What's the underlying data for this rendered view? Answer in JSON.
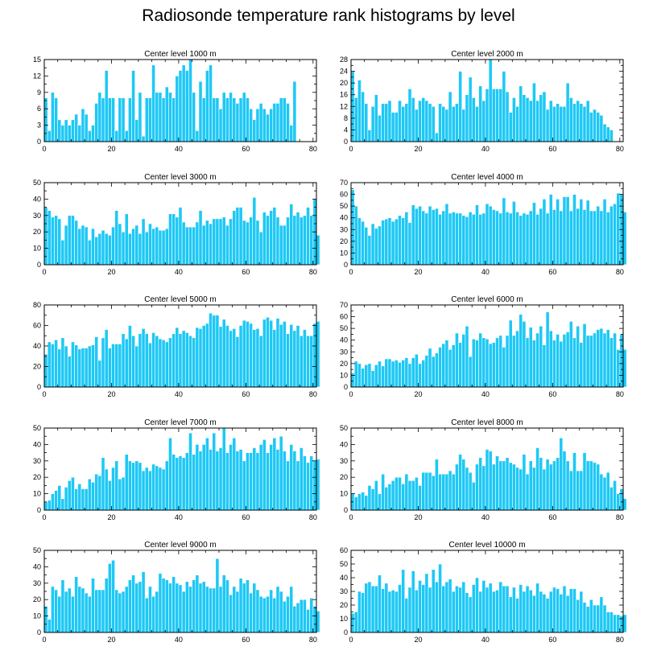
{
  "title": "Radiosonde temperature rank histograms by level",
  "colors": {
    "bar": "#1ec8f5",
    "bar_edge": "#ffffff",
    "axis": "#000000"
  },
  "chart_data": [
    {
      "type": "bar",
      "title": "Center level 1000 m",
      "xlim": [
        0,
        81
      ],
      "ylim": [
        0,
        15
      ],
      "xticks": [
        0,
        20,
        40,
        60,
        80
      ],
      "yticks": [
        0,
        3,
        6,
        9,
        12,
        15
      ],
      "values": [
        8,
        2,
        9,
        8,
        4,
        3,
        4,
        3,
        4,
        5,
        3,
        6,
        5,
        2,
        3,
        7,
        9,
        8,
        13,
        8,
        8,
        2,
        8,
        8,
        2,
        8,
        13,
        4,
        9,
        1,
        8,
        8,
        14,
        9,
        9,
        8,
        10,
        9,
        8,
        12,
        13,
        14,
        13,
        15,
        9,
        2,
        11,
        8,
        13,
        14,
        8,
        8,
        6,
        9,
        8,
        9,
        8,
        7,
        8,
        9,
        8,
        6,
        4,
        6,
        7,
        6,
        5,
        6,
        7,
        7,
        8,
        8,
        7,
        3,
        11
      ]
    },
    {
      "type": "bar",
      "title": "Center level 2000 m",
      "xlim": [
        0,
        81
      ],
      "ylim": [
        0,
        28
      ],
      "xticks": [
        0,
        20,
        40,
        60,
        80
      ],
      "yticks": [
        0,
        4,
        8,
        12,
        16,
        20,
        24,
        28
      ],
      "values": [
        24,
        15,
        21,
        17,
        13,
        4,
        12,
        16,
        9,
        13,
        13,
        14,
        10,
        10,
        14,
        12,
        13,
        18,
        15,
        11,
        14,
        15,
        14,
        13,
        12,
        3,
        13,
        12,
        11,
        17,
        12,
        13,
        24,
        11,
        16,
        22,
        15,
        12,
        19,
        14,
        18,
        28,
        18,
        18,
        18,
        24,
        17,
        10,
        15,
        12,
        19,
        16,
        15,
        14,
        20,
        14,
        16,
        17,
        11,
        14,
        12,
        13,
        12,
        12,
        20,
        15,
        13,
        14,
        13,
        12,
        14,
        10,
        11,
        10,
        9,
        6,
        5,
        4
      ]
    },
    {
      "type": "bar",
      "title": "Center level 3000 m",
      "xlim": [
        0,
        81
      ],
      "ylim": [
        0,
        50
      ],
      "xticks": [
        0,
        20,
        40,
        60,
        80
      ],
      "yticks": [
        0,
        10,
        20,
        30,
        40,
        50
      ],
      "values": [
        35,
        33,
        29,
        30,
        28,
        15,
        24,
        30,
        30,
        27,
        22,
        24,
        23,
        15,
        22,
        17,
        19,
        21,
        19,
        18,
        23,
        33,
        25,
        20,
        31,
        19,
        22,
        24,
        19,
        28,
        20,
        25,
        22,
        23,
        21,
        21,
        22,
        31,
        31,
        29,
        35,
        26,
        23,
        23,
        23,
        26,
        33,
        24,
        27,
        25,
        28,
        28,
        28,
        29,
        24,
        28,
        33,
        35,
        35,
        27,
        26,
        29,
        41,
        27,
        20,
        32,
        30,
        33,
        35,
        29,
        24,
        24,
        29,
        37,
        30,
        32,
        29,
        30,
        35,
        30,
        40,
        18
      ]
    },
    {
      "type": "bar",
      "title": "Center level 4000 m",
      "xlim": [
        0,
        81
      ],
      "ylim": [
        0,
        70
      ],
      "xticks": [
        0,
        20,
        40,
        60,
        80
      ],
      "yticks": [
        0,
        10,
        20,
        30,
        40,
        50,
        60,
        70
      ],
      "values": [
        64,
        50,
        40,
        37,
        32,
        25,
        35,
        31,
        33,
        38,
        39,
        40,
        37,
        39,
        42,
        40,
        45,
        36,
        51,
        48,
        50,
        46,
        44,
        50,
        47,
        48,
        43,
        46,
        52,
        44,
        45,
        44,
        44,
        42,
        41,
        45,
        43,
        51,
        43,
        44,
        52,
        50,
        47,
        46,
        44,
        57,
        45,
        44,
        54,
        45,
        42,
        44,
        43,
        46,
        53,
        43,
        48,
        56,
        44,
        60,
        47,
        56,
        46,
        58,
        58,
        46,
        60,
        48,
        56,
        47,
        55,
        46,
        46,
        50,
        46,
        56,
        45,
        50,
        52,
        61,
        60,
        45
      ]
    },
    {
      "type": "bar",
      "title": "Center level 5000 m",
      "xlim": [
        0,
        81
      ],
      "ylim": [
        0,
        80
      ],
      "xticks": [
        0,
        20,
        40,
        60,
        80
      ],
      "yticks": [
        0,
        20,
        40,
        60,
        80
      ],
      "values": [
        32,
        44,
        42,
        46,
        37,
        48,
        40,
        30,
        44,
        41,
        37,
        38,
        38,
        40,
        41,
        49,
        26,
        48,
        56,
        38,
        42,
        42,
        42,
        52,
        47,
        60,
        50,
        40,
        52,
        57,
        52,
        43,
        53,
        50,
        47,
        46,
        44,
        48,
        52,
        58,
        52,
        55,
        53,
        50,
        48,
        58,
        57,
        60,
        62,
        72,
        70,
        70,
        59,
        66,
        60,
        55,
        57,
        49,
        60,
        65,
        64,
        62,
        56,
        57,
        50,
        66,
        68,
        65,
        56,
        67,
        61,
        64,
        52,
        61,
        55,
        60,
        50,
        56,
        50,
        50,
        62,
        64
      ]
    },
    {
      "type": "bar",
      "title": "Center level 6000 m",
      "xlim": [
        0,
        81
      ],
      "ylim": [
        0,
        70
      ],
      "xticks": [
        0,
        20,
        40,
        60,
        80
      ],
      "yticks": [
        0,
        10,
        20,
        30,
        40,
        50,
        60,
        70
      ],
      "values": [
        12,
        22,
        20,
        16,
        19,
        20,
        14,
        19,
        22,
        18,
        24,
        24,
        22,
        23,
        21,
        23,
        25,
        20,
        25,
        28,
        20,
        23,
        27,
        33,
        26,
        29,
        34,
        37,
        40,
        32,
        36,
        46,
        38,
        45,
        52,
        26,
        41,
        40,
        46,
        42,
        41,
        37,
        38,
        42,
        44,
        34,
        44,
        57,
        44,
        48,
        62,
        56,
        42,
        51,
        40,
        46,
        52,
        36,
        64,
        48,
        40,
        45,
        39,
        45,
        47,
        56,
        42,
        52,
        38,
        54,
        44,
        44,
        46,
        49,
        50,
        46,
        49,
        42,
        46,
        32,
        45,
        32
      ]
    },
    {
      "type": "bar",
      "title": "Center level 7000 m",
      "xlim": [
        0,
        81
      ],
      "ylim": [
        0,
        50
      ],
      "xticks": [
        0,
        20,
        40,
        60,
        80
      ],
      "yticks": [
        0,
        10,
        20,
        30,
        40,
        50
      ],
      "values": [
        5,
        6,
        10,
        12,
        15,
        7,
        14,
        18,
        20,
        13,
        16,
        13,
        13,
        19,
        17,
        22,
        21,
        32,
        25,
        18,
        26,
        30,
        19,
        20,
        34,
        30,
        29,
        30,
        29,
        24,
        26,
        24,
        28,
        27,
        26,
        25,
        30,
        44,
        34,
        32,
        33,
        32,
        35,
        47,
        34,
        40,
        36,
        40,
        44,
        37,
        47,
        36,
        38,
        50,
        35,
        40,
        44,
        36,
        37,
        30,
        35,
        35,
        38,
        35,
        40,
        43,
        35,
        40,
        44,
        37,
        45,
        36,
        30,
        40,
        36,
        30,
        38,
        33,
        29,
        33,
        30,
        31
      ]
    },
    {
      "type": "bar",
      "title": "Center level 8000 m",
      "xlim": [
        0,
        81
      ],
      "ylim": [
        0,
        50
      ],
      "xticks": [
        0,
        20,
        40,
        60,
        80
      ],
      "yticks": [
        0,
        10,
        20,
        30,
        40,
        50
      ],
      "values": [
        10,
        8,
        10,
        11,
        9,
        15,
        13,
        18,
        10,
        22,
        14,
        16,
        18,
        20,
        20,
        16,
        22,
        18,
        18,
        20,
        15,
        23,
        23,
        23,
        21,
        31,
        22,
        22,
        22,
        24,
        22,
        28,
        34,
        31,
        26,
        23,
        17,
        28,
        32,
        27,
        37,
        36,
        28,
        33,
        30,
        30,
        32,
        29,
        28,
        26,
        25,
        34,
        22,
        30,
        26,
        38,
        32,
        25,
        31,
        28,
        30,
        32,
        44,
        36,
        30,
        24,
        35,
        24,
        24,
        35,
        30,
        30,
        29,
        28,
        22,
        20,
        23,
        14,
        18,
        10,
        13,
        7
      ]
    },
    {
      "type": "bar",
      "title": "Center level 9000 m",
      "xlim": [
        0,
        81
      ],
      "ylim": [
        0,
        50
      ],
      "xticks": [
        0,
        20,
        40,
        60,
        80
      ],
      "yticks": [
        0,
        10,
        20,
        30,
        40,
        50
      ],
      "values": [
        16,
        8,
        28,
        26,
        22,
        32,
        25,
        27,
        22,
        34,
        28,
        27,
        24,
        22,
        33,
        26,
        26,
        26,
        33,
        42,
        44,
        26,
        24,
        25,
        28,
        32,
        35,
        30,
        31,
        37,
        21,
        28,
        22,
        25,
        36,
        33,
        32,
        30,
        34,
        30,
        29,
        25,
        31,
        28,
        32,
        35,
        30,
        31,
        28,
        27,
        27,
        45,
        28,
        35,
        32,
        23,
        28,
        25,
        33,
        30,
        32,
        24,
        30,
        26,
        22,
        21,
        22,
        26,
        21,
        28,
        25,
        19,
        22,
        28,
        16,
        18,
        20,
        20,
        14,
        21,
        16,
        13
      ]
    },
    {
      "type": "bar",
      "title": "Center level 10000 m",
      "xlim": [
        0,
        81
      ],
      "ylim": [
        0,
        60
      ],
      "xticks": [
        0,
        20,
        40,
        60,
        80
      ],
      "yticks": [
        0,
        10,
        20,
        30,
        40,
        50,
        60
      ],
      "values": [
        14,
        15,
        30,
        29,
        36,
        37,
        34,
        34,
        42,
        32,
        36,
        30,
        31,
        30,
        35,
        46,
        25,
        33,
        45,
        31,
        38,
        35,
        43,
        33,
        46,
        37,
        50,
        34,
        37,
        39,
        30,
        34,
        33,
        37,
        29,
        26,
        35,
        40,
        30,
        38,
        33,
        36,
        30,
        31,
        37,
        34,
        34,
        26,
        33,
        25,
        35,
        30,
        34,
        31,
        27,
        36,
        30,
        28,
        25,
        30,
        33,
        32,
        28,
        34,
        27,
        32,
        32,
        24,
        30,
        22,
        19,
        24,
        20,
        20,
        26,
        20,
        15,
        15,
        13,
        13,
        12,
        13
      ]
    }
  ]
}
